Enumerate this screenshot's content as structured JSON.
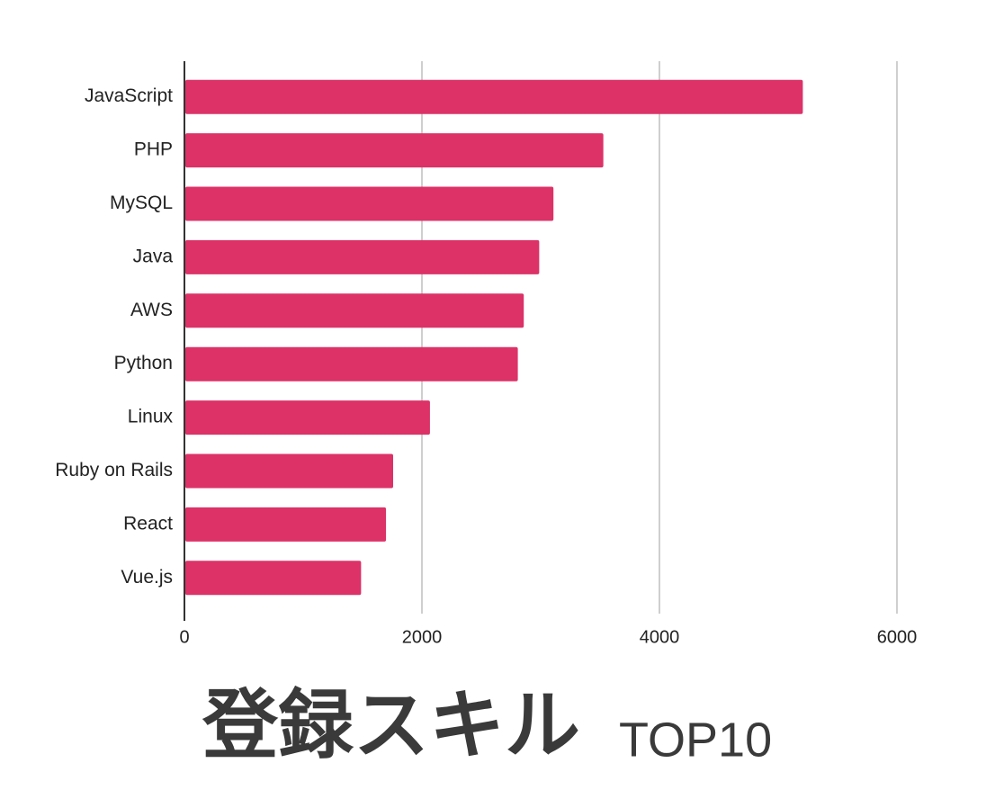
{
  "chart_data": {
    "type": "barh",
    "title": "登録スキル",
    "subtitle": "TOP10",
    "categories": [
      "JavaScript",
      "PHP",
      "MySQL",
      "Java",
      "AWS",
      "Python",
      "Linux",
      "Ruby on Rails",
      "React",
      "Vue.js"
    ],
    "values": [
      5200,
      3520,
      3100,
      2980,
      2850,
      2800,
      2060,
      1750,
      1690,
      1480
    ],
    "color": "#dc3268",
    "xlim": [
      0,
      6000
    ],
    "xticks": [
      0,
      2000,
      4000,
      6000
    ],
    "grid": true
  }
}
